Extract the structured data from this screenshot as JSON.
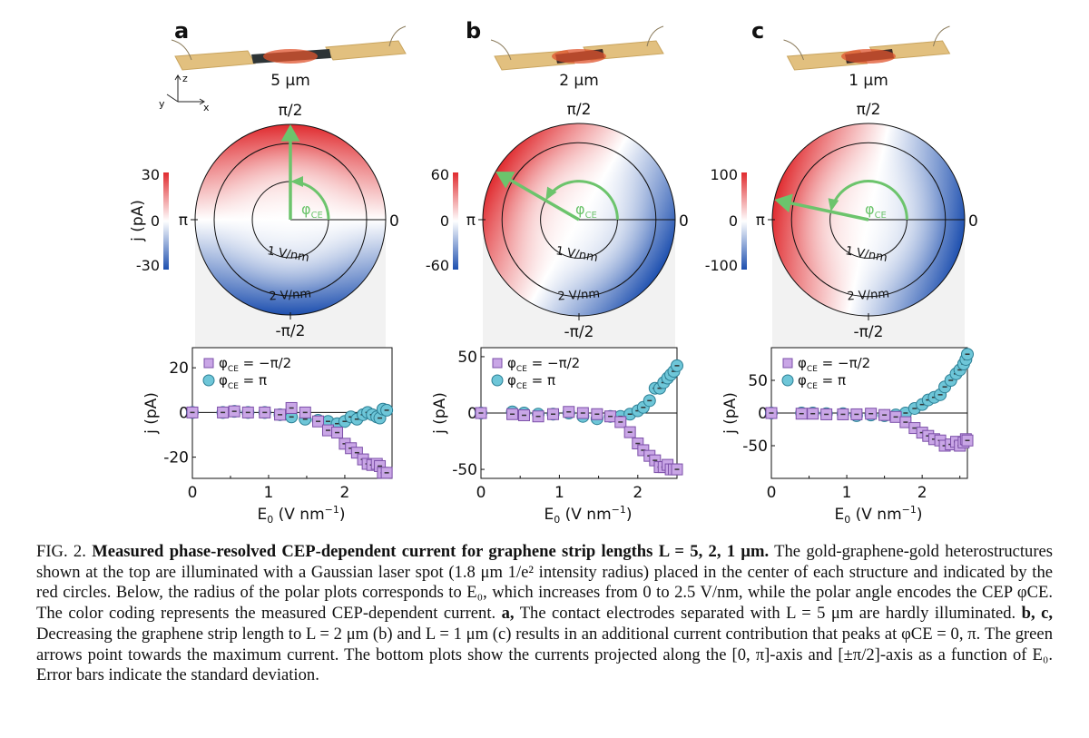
{
  "figure": {
    "panels": [
      {
        "letter": "a",
        "length_label": "5 µm",
        "cbar": {
          "max": "30",
          "zero": "0",
          "min": "-30"
        },
        "arrow_angle_deg": 90,
        "polar_labels": {
          "top": "π/2",
          "bottom": "-π/2",
          "left": "π",
          "right": "0",
          "ring1": "1 V/nm",
          "ring2": "2 V/nm",
          "phi": "φ",
          "phi_sub": "CE"
        },
        "cbar_label": "j (pA)"
      },
      {
        "letter": "b",
        "length_label": "2 µm",
        "cbar": {
          "max": "60",
          "zero": "0",
          "min": "-60"
        },
        "arrow_angle_deg": 150,
        "polar_labels": {
          "top": "π/2",
          "bottom": "-π/2",
          "left": "π",
          "right": "0",
          "ring1": "1 V/nm",
          "ring2": "2 V/nm",
          "phi": "φ",
          "phi_sub": "CE"
        },
        "cbar_label": ""
      },
      {
        "letter": "c",
        "length_label": "1 µm",
        "cbar": {
          "max": "100",
          "zero": "0",
          "min": "-100"
        },
        "arrow_angle_deg": 168,
        "polar_labels": {
          "top": "π/2",
          "bottom": "-π/2",
          "left": "π",
          "right": "0",
          "ring1": "1 V/nm",
          "ring2": "2 V/nm",
          "phi": "φ",
          "phi_sub": "CE"
        },
        "cbar_label": ""
      }
    ],
    "axes_icon": {
      "z": "z",
      "y": "y",
      "x": "x"
    },
    "colors": {
      "red": "#e02a2e",
      "blue": "#1d4faf",
      "green": "#6cc46c",
      "square": "#c9a6e6",
      "square_edge": "#7b4fa8",
      "circle": "#6ec6d8",
      "circle_edge": "#2c7f95"
    }
  },
  "chart_data": [
    {
      "type": "scatter",
      "panel": "a",
      "xlabel": "E",
      "xlabel_sub": "0",
      "xlabel_unit": " (V nm",
      "xlabel_sup": "−1",
      "xlabel_end": ")",
      "ylabel": "j (pA)",
      "xlim": [
        0,
        2.62
      ],
      "ylim": [
        -29.5,
        29
      ],
      "xticks": [
        0,
        1,
        2
      ],
      "yticks": [
        20,
        0,
        -20
      ],
      "x": [
        0,
        0.4,
        0.55,
        0.73,
        0.95,
        1.15,
        1.3,
        1.48,
        1.65,
        1.78,
        1.9,
        2.0,
        2.08,
        2.16,
        2.24,
        2.3,
        2.36,
        2.42,
        2.46,
        2.5,
        2.55
      ],
      "series": [
        {
          "name": "φCE = −π/2",
          "legend_main": "φ",
          "legend_sub": "CE",
          "legend_rest": " = −π/2",
          "marker": "square",
          "values": [
            0,
            0,
            0.5,
            0,
            0,
            -1,
            2,
            0,
            -4,
            -8,
            -9,
            -14,
            -16,
            -18,
            -21,
            -23,
            -23.5,
            -23,
            -24,
            -27,
            -27
          ]
        },
        {
          "name": "φCE = π",
          "legend_main": "φ",
          "legend_sub": "CE",
          "legend_rest": " = π",
          "marker": "circle",
          "values": [
            0,
            0,
            0.5,
            0,
            0,
            -1,
            -2,
            -3,
            -3.5,
            -4,
            -5,
            -4,
            -2,
            -3,
            -1,
            0,
            -1,
            -2,
            -2.5,
            1.5,
            1
          ]
        }
      ]
    },
    {
      "type": "scatter",
      "panel": "b",
      "xlabel": "E",
      "xlabel_sub": "0",
      "xlabel_unit": " (V nm",
      "xlabel_sup": "−1",
      "xlabel_end": ")",
      "ylabel": "j (pA)",
      "xlim": [
        0,
        2.5
      ],
      "ylim": [
        -58,
        58
      ],
      "xticks": [
        0,
        1,
        2
      ],
      "yticks": [
        50,
        0,
        -50
      ],
      "x": [
        0,
        0.4,
        0.55,
        0.73,
        0.92,
        1.12,
        1.3,
        1.48,
        1.65,
        1.78,
        1.9,
        2.0,
        2.07,
        2.15,
        2.22,
        2.28,
        2.33,
        2.38,
        2.42,
        2.46,
        2.5
      ],
      "series": [
        {
          "name": "φCE = −π/2",
          "legend_main": "φ",
          "legend_sub": "CE",
          "legend_rest": " = −π/2",
          "marker": "square",
          "values": [
            0,
            -1,
            -2,
            -3,
            -1,
            1,
            0,
            -1,
            -3,
            -8,
            -17,
            -27,
            -33,
            -38,
            -42,
            -48,
            -48,
            -46,
            -50,
            -50,
            -50
          ]
        },
        {
          "name": "φCE = π",
          "legend_main": "φ",
          "legend_sub": "CE",
          "legend_rest": " = π",
          "marker": "circle",
          "values": [
            0,
            1,
            0,
            -1,
            -1,
            0,
            -3,
            -5,
            -3,
            -3,
            -1,
            2,
            5,
            11,
            22,
            22,
            27,
            31,
            34,
            37,
            42
          ]
        }
      ]
    },
    {
      "type": "scatter",
      "panel": "c",
      "xlabel": "E",
      "xlabel_sub": "0",
      "xlabel_unit": " (V nm",
      "xlabel_sup": "−1",
      "xlabel_end": ")",
      "ylabel": "j (pA)",
      "xlim": [
        0,
        2.6
      ],
      "ylim": [
        -100,
        100
      ],
      "xticks": [
        0,
        1,
        2
      ],
      "yticks": [
        50,
        0,
        -50
      ],
      "x": [
        0,
        0.4,
        0.55,
        0.73,
        0.95,
        1.13,
        1.32,
        1.5,
        1.65,
        1.78,
        1.9,
        2.0,
        2.08,
        2.16,
        2.24,
        2.3,
        2.38,
        2.45,
        2.5,
        2.55,
        2.58,
        2.6
      ],
      "series": [
        {
          "name": "φCE = −π/2",
          "legend_main": "φ",
          "legend_sub": "CE",
          "legend_rest": " = −π/2",
          "marker": "square",
          "values": [
            0,
            -1,
            -1,
            -2,
            -2,
            -2,
            -1,
            -3,
            -6,
            -14,
            -23,
            -30,
            -35,
            -40,
            -42,
            -50,
            -48,
            -44,
            -50,
            -45,
            -40,
            -42
          ]
        },
        {
          "name": "φCE = π",
          "legend_main": "φ",
          "legend_sub": "CE",
          "legend_rest": " = π",
          "marker": "circle",
          "values": [
            0,
            0,
            0,
            -1,
            -1,
            -4,
            -3,
            -4,
            -3,
            0,
            7,
            13,
            20,
            24,
            28,
            40,
            50,
            60,
            66,
            75,
            82,
            90
          ]
        }
      ]
    }
  ],
  "caption": {
    "fig_label": "FIG. 2.",
    "title": "Measured phase-resolved CEP-dependent current for graphene strip lengths L = 5, 2, 1 μm.",
    "text": "The gold-graphene-gold heterostructures shown at the top are illuminated with a Gaussian laser spot (1.8 μm 1/e² intensity radius) placed in the center of each structure and indicated by the red circles. Below, the radius of the polar plots corresponds to E₀, which increases from 0 to 2.5 V/nm, while the polar angle encodes the CEP φCE. The color coding represents the measured CEP-dependent current.",
    "a_label": "a,",
    "a_text": "The contact electrodes separated with L = 5 μm are hardly illuminated.",
    "bc_label": "b, c,",
    "bc_text": "Decreasing the graphene strip length to L = 2 μm (b) and L = 1 μm (c) results in an additional current contribution that peaks at φCE = 0, π. The green arrows point towards the maximum current. The bottom plots show the currents projected along the [0, π]-axis and [±π/2]-axis as a function of E₀. Error bars indicate the standard deviation."
  }
}
